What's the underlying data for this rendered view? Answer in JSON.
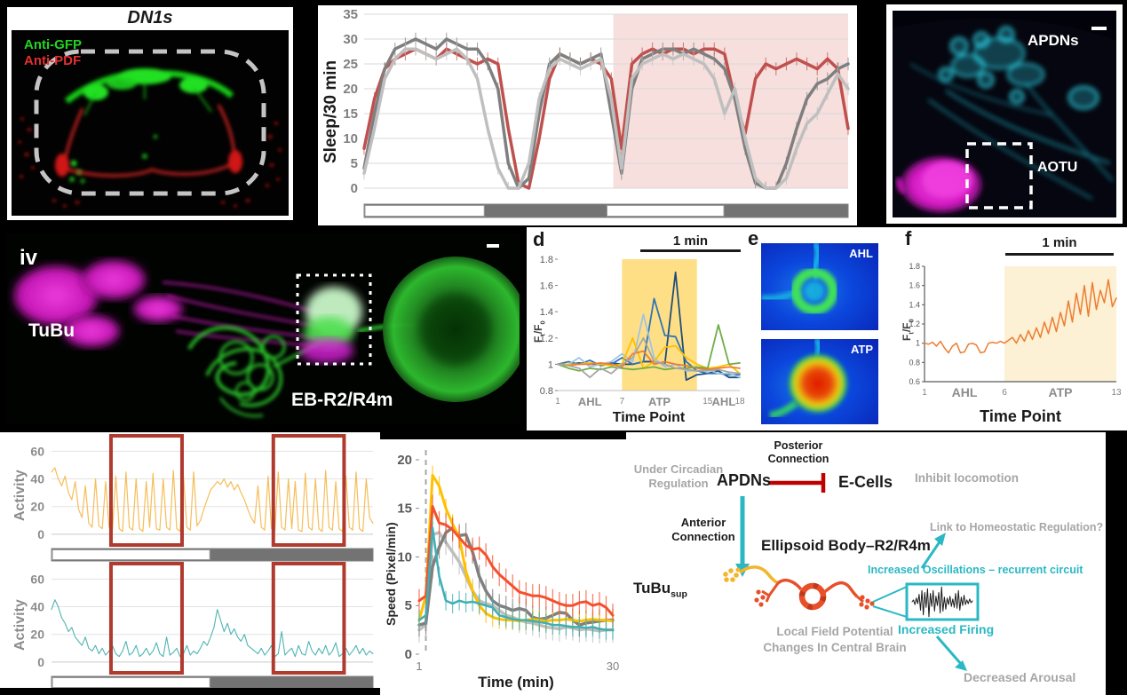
{
  "colors": {
    "accent_teal": "#2bb8c4",
    "inhibit_red": "#c00000",
    "tubu_yellow": "#f2b52c",
    "neuron_orangered": "#e8502a",
    "box_red": "#b03a2e",
    "gray_text": "#a6a6a6",
    "sleep_red": "#c0504d",
    "dark_gray_line": "#7f7f7f",
    "light_gray_line": "#bfbfbf",
    "pink_shade": "#f6dfdd",
    "yellow_shade": "#ffdf86",
    "cream_shade": "#fcf0d5"
  },
  "dn1s": {
    "title": "DN1s",
    "anti_gfp": "Anti-GFP",
    "anti_pdf": "Anti-PDF"
  },
  "apdns": {
    "label_top": "APDNs",
    "label_bottom": "AOTU"
  },
  "ebimg": {
    "corner": "iv",
    "label_left": "TuBu",
    "label_bottom": "EB-R2/R4m"
  },
  "d": {
    "letter": "d",
    "scalebar": "1 min",
    "xlabel": "Time Point",
    "yl1": "F",
    "yl1sub": "t",
    "yl2": "/F",
    "yl2sub": "0"
  },
  "e": {
    "letter": "e",
    "img1_label": "AHL",
    "img2_label": "ATP"
  },
  "f": {
    "letter": "f",
    "scalebar": "1 min",
    "xlabel": "Time Point",
    "yl1": "F",
    "yl1sub": "t",
    "yl2": "/F",
    "yl2sub": "0"
  },
  "activity": {
    "ylabel_top": "Activity",
    "ylabel_bottom": "Activity"
  },
  "speed": {
    "xlabel": "Time (min)",
    "ylabel": "Speed (Pixel/min)"
  },
  "diagram": {
    "under_circadian": "Under Circadian Regulation",
    "apdns": "APDNs",
    "posterior": "Posterior Connection",
    "ecells": "E-Cells",
    "inhibit": "Inhibit locomotion",
    "anterior": "Anterior Connection",
    "ellipsoid": "Ellipsoid Body–R2/R4m",
    "link": "Link to Homeostatic Regulation?",
    "oscillations": "Increased Oscillations – recurrent circuit",
    "tubu_main": "TuBu",
    "tubu_sub": "sup",
    "firing": "Increased Firing",
    "lfp": "Local Field Potential Changes In Central Brain",
    "arousal": "Decreased Arousal"
  },
  "chart_data": [
    {
      "id": "sleep_profile",
      "type": "line",
      "ylabel": "Sleep/30 min",
      "ylim": [
        0,
        35
      ],
      "yticks": [
        0,
        5,
        10,
        15,
        20,
        25,
        30,
        35
      ],
      "shade": {
        "from_frac": 0.515,
        "to_frac": 1.0,
        "color": "#f6dfdd"
      },
      "bar_segments": [
        {
          "light": true,
          "from": 0,
          "to": 0.25
        },
        {
          "light": false,
          "from": 0.25,
          "to": 0.5
        },
        {
          "light": true,
          "from": 0.5,
          "to": 0.745
        },
        {
          "light": false,
          "from": 0.745,
          "to": 1.0
        }
      ],
      "series": [
        {
          "name": "red-line",
          "color": "#c0504d",
          "width": 3.5,
          "err": 1.3,
          "values": [
            8,
            18,
            24,
            26,
            27,
            28,
            27,
            26,
            28,
            27,
            26,
            25,
            26,
            25,
            12,
            1,
            0,
            10,
            22,
            27,
            26,
            25,
            26,
            25,
            22,
            8,
            25,
            27,
            28,
            27,
            28,
            28,
            27,
            28,
            28,
            27,
            18,
            11,
            22,
            25,
            24,
            25,
            26,
            25,
            24,
            26,
            24,
            12
          ]
        },
        {
          "name": "dark-gray-line",
          "color": "#7f7f7f",
          "width": 3.5,
          "err": 1.3,
          "values": [
            4,
            15,
            24,
            28,
            29,
            30,
            29,
            28,
            30,
            29,
            28,
            28,
            25,
            20,
            5,
            0,
            2,
            15,
            25,
            27,
            26,
            25,
            26,
            27,
            15,
            3,
            20,
            26,
            27,
            28,
            28,
            27,
            28,
            27,
            26,
            24,
            18,
            8,
            1,
            0,
            0,
            5,
            12,
            18,
            21,
            22,
            24,
            25
          ]
        },
        {
          "name": "light-gray-line",
          "color": "#bfbfbf",
          "width": 3.5,
          "err": 1.3,
          "values": [
            3,
            12,
            22,
            26,
            28,
            28,
            27,
            26,
            27,
            28,
            26,
            22,
            12,
            4,
            0,
            0,
            5,
            18,
            24,
            26,
            25,
            24,
            25,
            26,
            18,
            4,
            22,
            25,
            26,
            27,
            26,
            27,
            26,
            25,
            22,
            15,
            20,
            10,
            2,
            0,
            0,
            2,
            8,
            13,
            15,
            19,
            23,
            20
          ]
        }
      ]
    },
    {
      "id": "gcamp_rois_d",
      "type": "line",
      "xlabel": "Time Point",
      "xlim": [
        1,
        18
      ],
      "ylim": [
        0.8,
        1.8
      ],
      "yticks": [
        0.8,
        1,
        1.2,
        1.4,
        1.6,
        1.8
      ],
      "xticks": [
        1,
        7,
        15,
        18
      ],
      "phase_labels": [
        "AHL",
        "ATP",
        "AHL"
      ],
      "phase_x": [
        4,
        10.5,
        16.5
      ],
      "shade": {
        "from": 7,
        "to": 14,
        "color": "#ffdf86"
      },
      "series": [
        {
          "name": "roi-navy",
          "color": "#1f4e79",
          "width": 1.8,
          "values": [
            1,
            1,
            1.01,
            1,
            1,
            1.01,
            1,
            1,
            1.02,
            1.02,
            1,
            1.7,
            0.88,
            0.92,
            0.93,
            0.95,
            0.9,
            0.9
          ]
        },
        {
          "name": "roi-blue",
          "color": "#2e75b6",
          "width": 1.8,
          "values": [
            1,
            1.02,
            1,
            1.03,
            0.99,
            1,
            1.05,
            1,
            1.02,
            1.5,
            1.22,
            1.21,
            1.02,
            0.95,
            0.93,
            0.93,
            0.92,
            0.92
          ]
        },
        {
          "name": "roi-lightblue",
          "color": "#9dc3e6",
          "width": 1.8,
          "values": [
            1,
            1,
            1.05,
            0.98,
            1,
            1.02,
            1.08,
            1.02,
            1.38,
            1.05,
            0.98,
            1,
            0.95,
            0.95,
            0.96,
            0.93,
            0.93,
            0.9
          ]
        },
        {
          "name": "roi-gold",
          "color": "#ffc000",
          "width": 1.8,
          "values": [
            1,
            1,
            1,
            1.01,
            1,
            0.99,
            1,
            1.2,
            0.97,
            1.02,
            1.13,
            1.14,
            1.05,
            1,
            0.97,
            0.98,
            1,
            0.93
          ]
        },
        {
          "name": "roi-orange",
          "color": "#ed7d31",
          "width": 1.8,
          "values": [
            1,
            0.99,
            1,
            1,
            1.01,
            1,
            0.98,
            1.08,
            1.1,
            1,
            1.02,
            1,
            0.99,
            0.97,
            0.96,
            0.97,
            0.98,
            0.97
          ]
        },
        {
          "name": "roi-green",
          "color": "#70ad47",
          "width": 1.8,
          "values": [
            1,
            0.97,
            0.95,
            0.97,
            0.96,
            0.98,
            0.97,
            0.96,
            0.97,
            0.98,
            0.96,
            0.97,
            0.97,
            0.98,
            0.97,
            1.3,
            1,
            1.01
          ]
        },
        {
          "name": "roi-gray",
          "color": "#a6a6a6",
          "width": 1.8,
          "values": [
            1,
            0.99,
            0.97,
            0.9,
            0.97,
            0.93,
            1,
            1.05,
            1.2,
            1.02,
            1,
            0.97,
            0.96,
            0.95,
            0.95,
            0.96,
            0.94,
            0.93
          ]
        }
      ]
    },
    {
      "id": "gcamp_trace_f",
      "type": "line",
      "xlabel": "Time Point",
      "xlim": [
        1,
        13
      ],
      "ylim": [
        0.6,
        1.8
      ],
      "yticks": [
        0.6,
        0.8,
        1,
        1.2,
        1.4,
        1.6,
        1.8
      ],
      "xticks": [
        1,
        6,
        13
      ],
      "phase_labels": [
        "AHL",
        "ATP"
      ],
      "phase_x": [
        3.5,
        9.5
      ],
      "shade": {
        "from": 6,
        "to": 13,
        "color": "#fcf0d5"
      },
      "series": [
        {
          "name": "gcamp-orange",
          "color": "#ed7d31",
          "width": 1.5,
          "values": [
            1,
            0.99,
            1.01,
            0.97,
            1.02,
            0.95,
            0.9,
            0.97,
            1,
            0.9,
            0.91,
            0.99,
            1,
            0.98,
            0.9,
            0.91,
            1,
            1.01,
            1,
            1.02,
            1,
            1.03,
            1.06,
            1,
            1.09,
            1.02,
            1.13,
            1.04,
            1.16,
            1.06,
            1.22,
            1.1,
            1.27,
            1.12,
            1.32,
            1.18,
            1.44,
            1.22,
            1.52,
            1.3,
            1.6,
            1.28,
            1.63,
            1.35,
            1.55,
            1.42,
            1.66,
            1.38,
            1.47
          ]
        }
      ]
    },
    {
      "id": "activity_top",
      "type": "line",
      "ylabel": "Activity",
      "ylim": [
        -2,
        66
      ],
      "yticks": [
        0,
        20,
        40,
        60
      ],
      "boxes": [
        [
          0.185,
          0.406
        ],
        [
          0.69,
          0.91
        ]
      ],
      "bar_segments": [
        {
          "light": true,
          "from": 0,
          "to": 0.495
        },
        {
          "light": false,
          "from": 0.495,
          "to": 1.0
        }
      ],
      "series": [
        {
          "name": "activity-yellow",
          "color": "#f5be5a",
          "width": 1.2,
          "values": [
            45,
            48,
            40,
            35,
            42,
            30,
            25,
            38,
            18,
            12,
            35,
            8,
            5,
            40,
            6,
            4,
            38,
            5,
            3,
            42,
            4,
            2,
            45,
            5,
            3,
            40,
            4,
            2,
            38,
            5,
            44,
            4,
            3,
            40,
            5,
            3,
            46,
            4,
            2,
            42,
            5,
            3,
            45,
            6,
            10,
            18,
            25,
            32,
            35,
            38,
            36,
            40,
            34,
            38,
            32,
            36,
            30,
            25,
            18,
            12,
            8,
            35,
            5,
            3,
            42,
            4,
            2,
            45,
            5,
            3,
            40,
            4,
            38,
            3,
            2,
            44,
            5,
            3,
            40,
            4,
            2,
            46,
            5,
            3,
            38,
            4,
            2,
            42,
            5,
            3,
            45,
            4,
            2,
            40,
            12,
            8
          ]
        }
      ]
    },
    {
      "id": "activity_bottom",
      "type": "line",
      "ylabel": "Activity",
      "ylim": [
        -2,
        66
      ],
      "yticks": [
        0,
        20,
        40,
        60
      ],
      "boxes": [
        [
          0.185,
          0.406
        ],
        [
          0.69,
          0.91
        ]
      ],
      "bar_segments": [
        {
          "light": true,
          "from": 0,
          "to": 0.495
        },
        {
          "light": false,
          "from": 0.495,
          "to": 1.0
        }
      ],
      "series": [
        {
          "name": "activity-teal",
          "color": "#4fb4b4",
          "width": 1.1,
          "values": [
            38,
            45,
            40,
            32,
            28,
            22,
            25,
            18,
            15,
            12,
            18,
            10,
            8,
            12,
            6,
            10,
            5,
            8,
            12,
            6,
            4,
            8,
            15,
            5,
            7,
            12,
            4,
            6,
            10,
            5,
            8,
            14,
            6,
            4,
            18,
            5,
            7,
            10,
            4,
            6,
            12,
            5,
            8,
            6,
            10,
            15,
            12,
            18,
            25,
            38,
            30,
            22,
            28,
            20,
            24,
            18,
            15,
            20,
            12,
            10,
            8,
            6,
            10,
            5,
            8,
            12,
            4,
            6,
            22,
            5,
            8,
            10,
            4,
            12,
            6,
            5,
            15,
            8,
            5,
            10,
            6,
            12,
            5,
            8,
            14,
            4,
            6,
            10,
            5,
            8,
            12,
            6,
            10,
            5,
            8,
            6
          ]
        }
      ]
    },
    {
      "id": "speed_post_stim",
      "type": "line",
      "xlabel": "Time (min)",
      "ylabel": "Speed (Pixel/min)",
      "xlim": [
        1,
        30
      ],
      "ylim": [
        0,
        21
      ],
      "yticks": [
        0,
        5,
        10,
        15,
        20
      ],
      "xticks": [
        1,
        30
      ],
      "dashed_x": 2,
      "series": [
        {
          "name": "speed-lightgray",
          "color": "#bfbfbf",
          "width": 3.5,
          "err": 1.3,
          "values": [
            2.5,
            3,
            12.3,
            12.5,
            11.5,
            10.5,
            9.5,
            8,
            6.5,
            5.5,
            5.2,
            5,
            4.5,
            4,
            3.8,
            3.5,
            3.3,
            3.2,
            3,
            2.8,
            2.7,
            2.6,
            2.8,
            2.7,
            2.5,
            2.6,
            2.5,
            2.4,
            2.5,
            2.5
          ]
        },
        {
          "name": "speed-darkgray",
          "color": "#808080",
          "width": 3.5,
          "err": 1.2,
          "values": [
            3,
            3.2,
            9,
            11,
            12.5,
            13,
            12.2,
            12.3,
            10.5,
            8,
            6.5,
            5.5,
            5,
            4.8,
            4.5,
            4.7,
            4.5,
            3.8,
            3.6,
            3.7,
            4,
            4.3,
            4.2,
            3.5,
            3,
            3.2,
            3.3,
            3.4,
            3.5,
            3.5
          ]
        },
        {
          "name": "speed-yellow",
          "color": "#ffc000",
          "width": 3,
          "err": 1.0,
          "values": [
            3.5,
            6,
            18.4,
            17.3,
            15,
            13.4,
            12,
            8.5,
            6.5,
            5,
            4.2,
            3.8,
            3.6,
            3.5,
            3.5,
            3.4,
            3.5,
            3.6,
            3.5,
            3.4,
            3.5,
            3.5,
            3.6,
            3.5,
            3.4,
            3.5,
            3.6,
            3.5,
            3.5,
            3.4
          ]
        },
        {
          "name": "speed-orange",
          "color": "#f4502e",
          "width": 3,
          "err": 1.2,
          "values": [
            5.5,
            6,
            15.2,
            13.5,
            13.3,
            12.8,
            12,
            11.2,
            10.8,
            10.9,
            10.2,
            9,
            8.2,
            7.6,
            7,
            6.4,
            6.2,
            6,
            6,
            5.8,
            5.5,
            5.2,
            5,
            5,
            5.3,
            5.4,
            5,
            5.2,
            4.8,
            4
          ]
        },
        {
          "name": "speed-teal",
          "color": "#3fafb5",
          "width": 2.5,
          "err": 1.0,
          "values": [
            3.5,
            4,
            13,
            8,
            5.5,
            5.2,
            5.5,
            5.3,
            5.4,
            5.2,
            5,
            4.8,
            4,
            3.8,
            3.6,
            3.5,
            3.5,
            3.4,
            3.3,
            3.2,
            3,
            3,
            2.9,
            2.8,
            2.8,
            2.7,
            2.8,
            2.6,
            2.5,
            2.5
          ]
        }
      ]
    },
    {
      "id": "lfp_waveform",
      "type": "line",
      "values": [
        0,
        2,
        -3,
        4,
        -2,
        8,
        -9,
        12,
        -14,
        10,
        -6,
        14,
        -16,
        9,
        -5,
        12,
        -10,
        6,
        -4,
        10,
        -12,
        16,
        -10,
        5,
        -8,
        4,
        -3,
        6,
        -5,
        3,
        -6,
        9,
        -7,
        12,
        -9,
        5,
        -4,
        7,
        -3,
        2,
        -2,
        3,
        -1,
        1
      ]
    }
  ]
}
